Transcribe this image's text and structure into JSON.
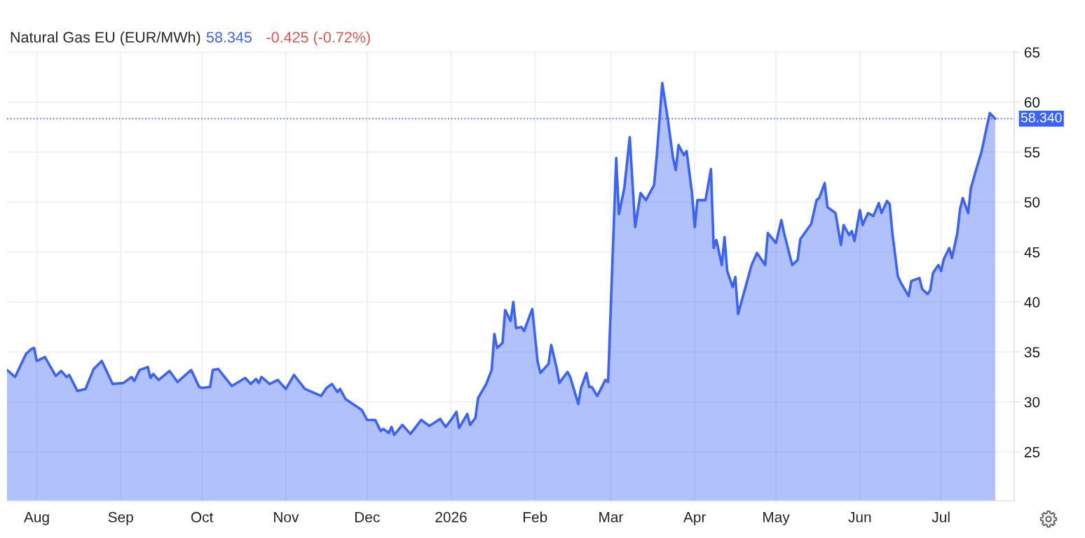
{
  "chart_data": {
    "type": "area",
    "title": "Natural Gas EU (EUR/MWh)",
    "annotations": [
      "58.345",
      "-0.425 (-0.72%)"
    ],
    "color": "#3b63f6",
    "x": [
      "2025-07-21",
      "2025-07-24",
      "2025-07-28",
      "2025-07-30",
      "2025-07-31",
      "2025-08-01",
      "2025-08-04",
      "2025-08-08",
      "2025-08-10",
      "2025-08-12",
      "2025-08-13",
      "2025-08-16",
      "2025-08-19",
      "2025-08-22",
      "2025-08-25",
      "2025-08-29",
      "2025-09-02",
      "2025-09-05",
      "2025-09-06",
      "2025-09-08",
      "2025-09-11",
      "2025-09-12",
      "2025-09-13",
      "2025-09-15",
      "2025-09-19",
      "2025-09-22",
      "2025-09-27",
      "2025-09-30",
      "2025-10-01",
      "2025-10-04",
      "2025-10-05",
      "2025-10-07",
      "2025-10-12",
      "2025-10-17",
      "2025-10-19",
      "2025-10-21",
      "2025-10-22",
      "2025-10-23",
      "2025-10-26",
      "2025-10-29",
      "2025-11-01",
      "2025-11-04",
      "2025-11-08",
      "2025-11-14",
      "2025-11-16",
      "2025-11-18",
      "2025-11-20",
      "2025-11-21",
      "2025-11-23",
      "2025-11-29",
      "2025-12-01",
      "2025-12-04",
      "2025-12-06",
      "2025-12-07",
      "2025-12-09",
      "2025-12-10",
      "2025-12-11",
      "2025-12-14",
      "2025-12-17",
      "2025-12-21",
      "2025-12-24",
      "2025-12-28",
      "2025-12-30",
      "2026-01-01",
      "2026-01-03",
      "2026-01-04",
      "2026-01-07",
      "2026-01-08",
      "2026-01-10",
      "2026-01-11",
      "2026-01-14",
      "2026-01-16",
      "2026-01-17",
      "2026-01-18",
      "2026-01-20",
      "2026-01-21",
      "2026-01-23",
      "2026-01-24",
      "2026-01-25",
      "2026-01-27",
      "2026-01-28",
      "2026-01-30",
      "2026-01-31",
      "2026-02-02",
      "2026-02-03",
      "2026-02-06",
      "2026-02-07",
      "2026-02-09",
      "2026-02-10",
      "2026-02-13",
      "2026-02-14",
      "2026-02-17",
      "2026-02-18",
      "2026-02-20",
      "2026-02-21",
      "2026-02-22",
      "2026-02-24",
      "2026-02-27",
      "2026-02-28",
      "2026-03-03",
      "2026-03-04",
      "2026-03-06",
      "2026-03-08",
      "2026-03-10",
      "2026-03-12",
      "2026-03-14",
      "2026-03-17",
      "2026-03-18",
      "2026-03-20",
      "2026-03-22",
      "2026-03-24",
      "2026-03-25",
      "2026-03-26",
      "2026-03-28",
      "2026-03-29",
      "2026-03-31",
      "2026-04-01",
      "2026-04-02",
      "2026-04-05",
      "2026-04-07",
      "2026-04-08",
      "2026-04-09",
      "2026-04-11",
      "2026-04-12",
      "2026-04-13",
      "2026-04-15",
      "2026-04-16",
      "2026-04-17",
      "2026-04-22",
      "2026-04-24",
      "2026-04-27",
      "2026-04-28",
      "2026-05-01",
      "2026-05-03",
      "2026-05-04",
      "2026-05-07",
      "2026-05-09",
      "2026-05-10",
      "2026-05-14",
      "2026-05-16",
      "2026-05-17",
      "2026-05-19",
      "2026-05-20",
      "2026-05-23",
      "2026-05-25",
      "2026-05-26",
      "2026-05-28",
      "2026-05-29",
      "2026-05-30",
      "2026-06-01",
      "2026-06-02",
      "2026-06-04",
      "2026-06-06",
      "2026-06-08",
      "2026-06-09",
      "2026-06-11",
      "2026-06-12",
      "2026-06-13",
      "2026-06-15",
      "2026-06-16",
      "2026-06-19",
      "2026-06-20",
      "2026-06-23",
      "2026-06-24",
      "2026-06-26",
      "2026-06-27",
      "2026-06-28",
      "2026-06-30",
      "2026-07-01",
      "2026-07-02",
      "2026-07-04",
      "2026-07-05",
      "2026-07-07",
      "2026-07-08",
      "2026-07-09",
      "2026-07-11",
      "2026-07-12",
      "2026-07-14",
      "2026-07-16",
      "2026-07-18",
      "2026-07-19",
      "2026-07-21"
    ],
    "values": [
      33.2,
      32.5,
      34.8,
      35.3,
      35.4,
      34.1,
      34.5,
      32.6,
      33.1,
      32.5,
      32.7,
      31.1,
      31.3,
      33.3,
      34.1,
      31.8,
      31.9,
      32.5,
      32.1,
      33.2,
      33.5,
      32.4,
      32.8,
      32.2,
      33.1,
      32.0,
      33.2,
      31.5,
      31.4,
      31.5,
      33.2,
      33.3,
      31.6,
      32.4,
      31.8,
      32.3,
      31.9,
      32.5,
      31.8,
      32.2,
      31.3,
      32.7,
      31.3,
      30.6,
      31.4,
      31.8,
      31.0,
      31.3,
      30.3,
      29.2,
      28.2,
      28.2,
      27.1,
      27.3,
      26.9,
      27.5,
      26.7,
      27.7,
      26.8,
      28.2,
      27.6,
      28.3,
      27.5,
      28.2,
      29.0,
      27.4,
      28.8,
      27.7,
      28.4,
      30.4,
      31.8,
      33.2,
      36.8,
      35.4,
      35.9,
      39.2,
      38.1,
      40.0,
      37.4,
      37.5,
      37.1,
      38.6,
      39.3,
      34.0,
      32.9,
      33.8,
      35.7,
      33.4,
      31.9,
      33.0,
      32.5,
      29.8,
      31.4,
      32.9,
      31.5,
      31.5,
      30.6,
      32.2,
      32.0,
      54.4,
      48.8,
      51.4,
      56.5,
      47.5,
      50.9,
      50.2,
      51.7,
      54.7,
      61.9,
      58.4,
      54.4,
      53.2,
      55.7,
      54.7,
      55.1,
      50.9,
      47.5,
      50.2,
      50.2,
      53.3,
      45.4,
      46.2,
      43.7,
      46.5,
      43.1,
      41.5,
      42.5,
      38.8,
      43.7,
      44.9,
      43.7,
      46.9,
      45.9,
      48.2,
      46.9,
      43.7,
      44.2,
      46.3,
      47.8,
      50.2,
      50.4,
      51.9,
      49.5,
      48.9,
      45.7,
      47.7,
      46.7,
      47.1,
      46.1,
      49.2,
      47.7,
      48.9,
      48.6,
      49.9,
      48.9,
      50.1,
      49.8,
      46.9,
      42.6,
      42.0,
      40.6,
      42.1,
      42.4,
      41.3,
      40.8,
      41.2,
      42.9,
      43.7,
      43.1,
      44.3,
      45.4,
      44.4,
      46.9,
      49.3,
      50.4,
      48.9,
      51.4,
      53.3,
      55.1,
      57.7,
      58.9,
      58.34
    ],
    "xlim": [
      "2025-07-21",
      "2026-07-28"
    ],
    "xticks": [
      {
        "value": "2025-08-01",
        "label": "Aug"
      },
      {
        "value": "2025-09-01",
        "label": "Sep"
      },
      {
        "value": "2025-10-01",
        "label": "Oct"
      },
      {
        "value": "2025-11-01",
        "label": "Nov"
      },
      {
        "value": "2025-12-01",
        "label": "Dec"
      },
      {
        "value": "2026-01-01",
        "label": "2026"
      },
      {
        "value": "2026-02-01",
        "label": "Feb"
      },
      {
        "value": "2026-03-01",
        "label": "Mar"
      },
      {
        "value": "2026-04-01",
        "label": "Apr"
      },
      {
        "value": "2026-05-01",
        "label": "May"
      },
      {
        "value": "2026-06-01",
        "label": "Jun"
      },
      {
        "value": "2026-07-01",
        "label": "Jul"
      }
    ],
    "ylim": [
      20.1,
      65.1
    ],
    "yticks": [
      25,
      30,
      35,
      40,
      45,
      50,
      55,
      60,
      65
    ],
    "grid": true,
    "ref_lines": [
      {
        "axis": "y",
        "value": 58.34,
        "label": "58.340",
        "color": "#3b63f6",
        "line_style": "dotted"
      }
    ]
  }
}
